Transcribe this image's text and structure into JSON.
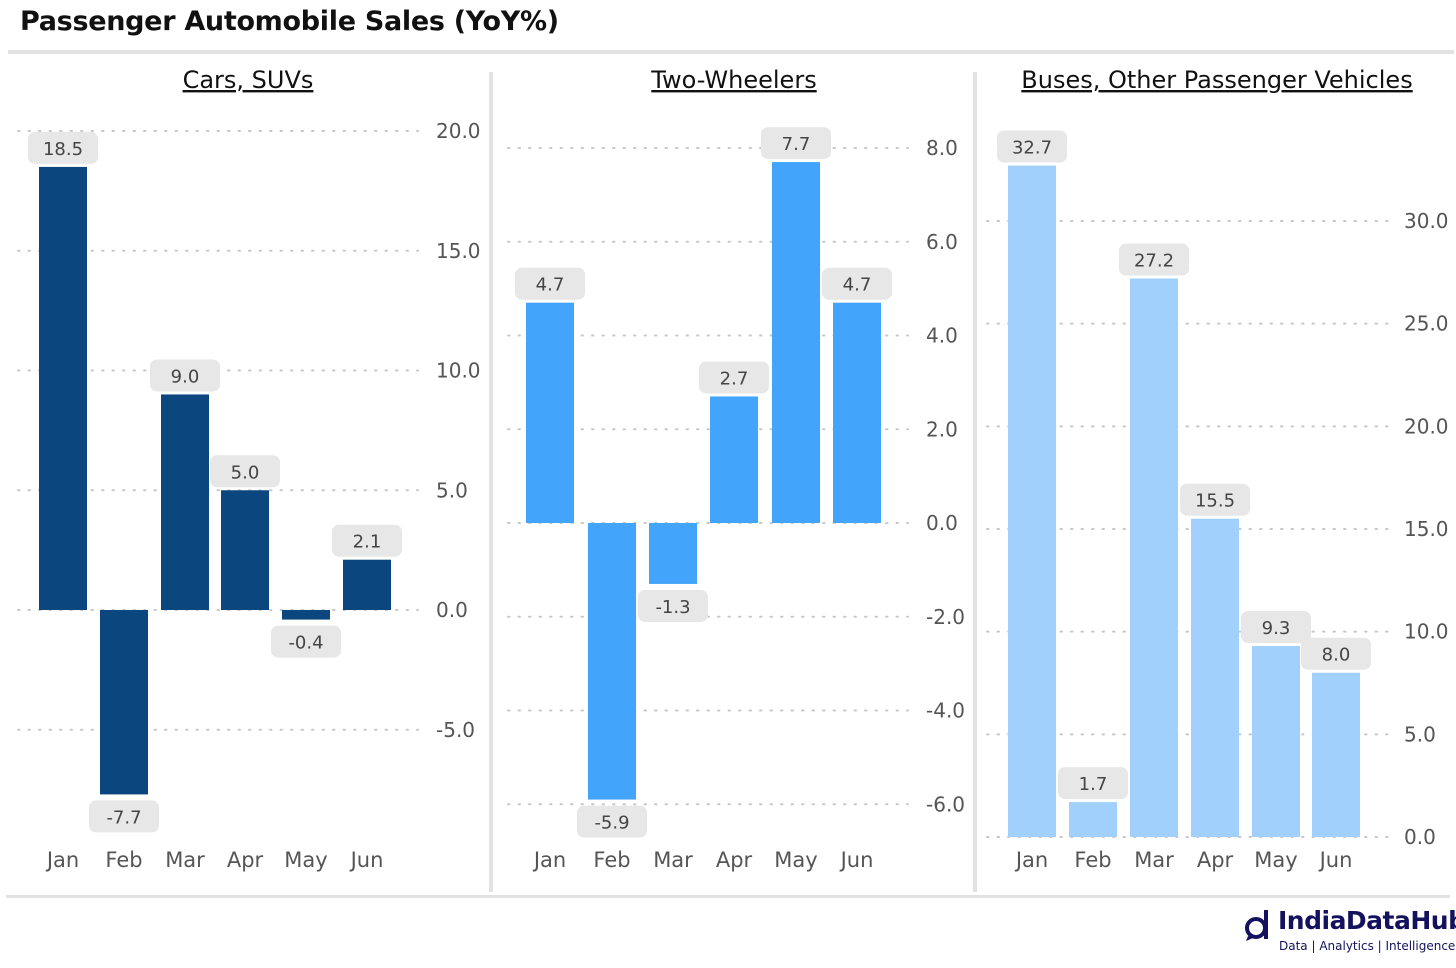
{
  "title": "Passenger Automobile Sales (YoY%)",
  "colors": {
    "cars": "#0b467e",
    "two_wheelers": "#42a4fb",
    "buses": "#a2d0fc",
    "label_bg": "#e7e7e7",
    "grid": "#c8c8c8"
  },
  "chart_data": [
    {
      "type": "bar",
      "title": "Cars, SUVs",
      "categories": [
        "Jan",
        "Feb",
        "Mar",
        "Apr",
        "May",
        "Jun"
      ],
      "values": [
        18.5,
        -7.7,
        9.0,
        5.0,
        -0.4,
        2.1
      ],
      "value_labels": [
        "18.5",
        "-7.7",
        "9.0",
        "5.0",
        "-0.4",
        "2.1"
      ],
      "yticks": [
        20.0,
        15.0,
        10.0,
        5.0,
        0.0,
        -5.0
      ],
      "ytick_labels": [
        "20.0",
        "15.0",
        "10.0",
        "5.0",
        "0.0",
        "-5.0"
      ],
      "ylim": [
        -8.5,
        20.5
      ],
      "yaxis_position": "right",
      "grid": true
    },
    {
      "type": "bar",
      "title": "Two-Wheelers",
      "categories": [
        "Jan",
        "Feb",
        "Mar",
        "Apr",
        "May",
        "Jun"
      ],
      "values": [
        4.7,
        -5.9,
        -1.3,
        2.7,
        7.7,
        4.7
      ],
      "value_labels": [
        "4.7",
        "-5.9",
        "-1.3",
        "2.7",
        "7.7",
        "4.7"
      ],
      "yticks": [
        8.0,
        6.0,
        4.0,
        2.0,
        0.0,
        -2.0,
        -4.0,
        -6.0
      ],
      "ytick_labels": [
        "8.0",
        "6.0",
        "4.0",
        "2.0",
        "0.0",
        "-2.0",
        "-4.0",
        "-6.0"
      ],
      "ylim": [
        -6.6,
        8.3
      ],
      "yaxis_position": "right",
      "grid": true
    },
    {
      "type": "bar",
      "title": "Buses, Other Passenger Vehicles",
      "categories": [
        "Jan",
        "Feb",
        "Mar",
        "Apr",
        "May",
        "Jun"
      ],
      "values": [
        32.7,
        1.7,
        27.2,
        15.5,
        9.3,
        8.0
      ],
      "value_labels": [
        "32.7",
        "1.7",
        "27.2",
        "15.5",
        "9.3",
        "8.0"
      ],
      "yticks": [
        30.0,
        25.0,
        20.0,
        15.0,
        10.0,
        5.0,
        0.0
      ],
      "ytick_labels": [
        "30.0",
        "25.0",
        "20.0",
        "15.0",
        "10.0",
        "5.0",
        "0.0"
      ],
      "ylim": [
        0,
        34
      ],
      "yaxis_position": "right",
      "grid": true
    }
  ],
  "brand": {
    "name": "IndiaDataHub",
    "tagline": "Data | Analytics | Intelligence"
  }
}
